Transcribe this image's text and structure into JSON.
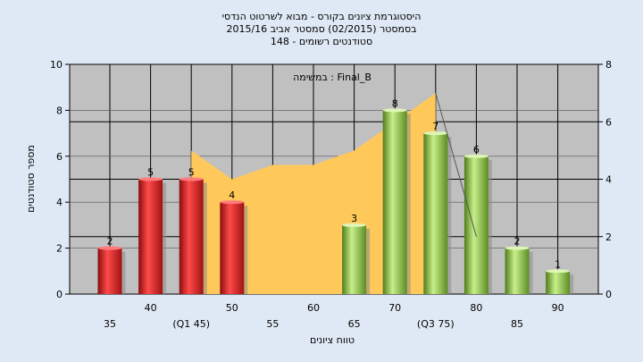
{
  "chart_data": {
    "type": "bar",
    "title_lines": [
      "היסטוגרמת ציונים בקורס - מבוא לשרטוט הנדסי",
      "בסמסטר  (02/2015)  סמסטר אביב 2015/16",
      "סטודנטים רשומים - 148"
    ],
    "annotation": "במשימה : Final_B",
    "ylabel": "מספר סטודנטים",
    "xlabel": "טווח ציונים",
    "ylim": [
      0,
      10
    ],
    "yticks": [
      0,
      2,
      4,
      6,
      8,
      10
    ],
    "y2lim": [
      0,
      8
    ],
    "y2ticks": [
      0,
      2,
      4,
      6,
      8
    ],
    "categories": [
      "35",
      "40",
      "(Q1 45)",
      "50",
      "55",
      "60",
      "65",
      "70",
      "(Q3 75)",
      "80",
      "85",
      "90"
    ],
    "values": [
      2,
      5,
      5,
      4,
      0,
      0,
      3,
      8,
      7,
      6,
      2,
      1
    ],
    "value_labels": [
      "2",
      "5",
      "5",
      "4",
      "",
      "",
      "3",
      "8",
      "7",
      "6",
      "2",
      "1"
    ],
    "bar_colors": [
      "red",
      "red",
      "red",
      "red",
      "green",
      "green",
      "green",
      "green",
      "green",
      "green",
      "green",
      "green"
    ],
    "area_values": [
      null,
      null,
      5,
      4,
      4.5,
      4.5,
      5,
      6,
      7,
      null,
      null,
      null
    ],
    "trend_line": [
      [
        8,
        7
      ],
      [
        9,
        2
      ]
    ],
    "colors": {
      "red": "#e02020",
      "green": "#8cc63f",
      "area": "#ffc85a",
      "plot_bg": "#c0c0c0",
      "page_bg": "#dfe9f5"
    },
    "grid": true
  }
}
